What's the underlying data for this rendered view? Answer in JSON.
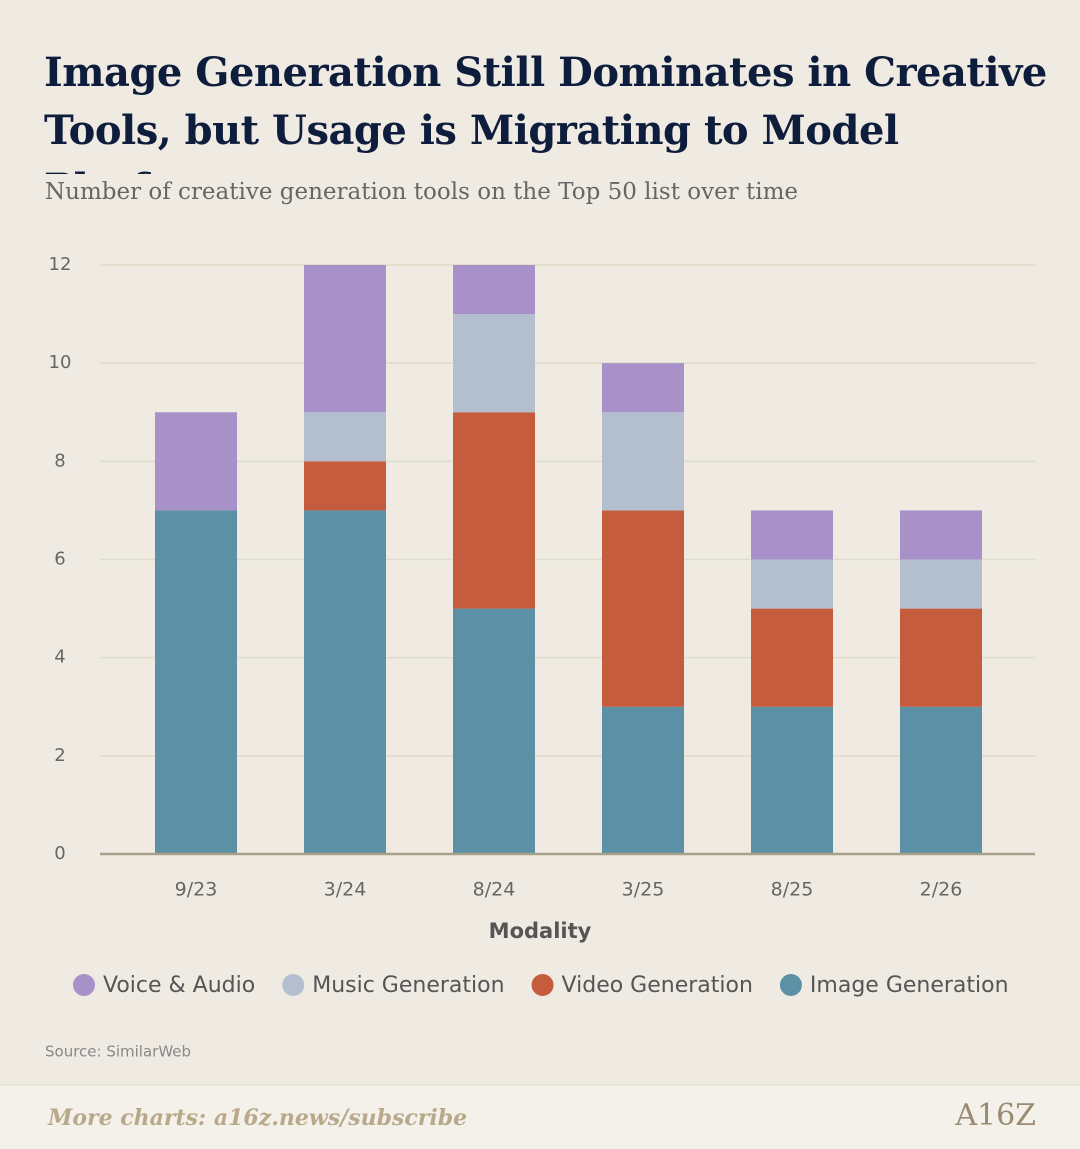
{
  "chart_data": {
    "type": "stacked_bar",
    "title": "Image Generation Still Dominates in Creative Tools, but Usage is Migrating to Model Platforms",
    "subtitle": "Number of creative generation tools on the Top 50 list over time",
    "x_label": "Modality",
    "categories": [
      "9/23",
      "3/24",
      "8/24",
      "3/25",
      "8/25",
      "2/26"
    ],
    "series": [
      {
        "name": "Voice & Audio",
        "color": "#a891c8",
        "values": [
          2,
          3,
          1,
          1,
          1,
          1
        ]
      },
      {
        "name": "Music Generation",
        "color": "#b3bfcf",
        "values": [
          0,
          1,
          2,
          2,
          1,
          1
        ]
      },
      {
        "name": "Video Generation",
        "color": "#c65c3e",
        "values": [
          0,
          1,
          4,
          4,
          2,
          2
        ]
      },
      {
        "name": "Image Generation",
        "color": "#5b90a5",
        "values": [
          7,
          7,
          5,
          3,
          3,
          3
        ]
      }
    ],
    "ylim": [
      0,
      12
    ],
    "yticks": [
      0,
      2,
      4,
      6,
      8,
      10,
      12
    ],
    "grid": true,
    "source": "Source: SimilarWeb",
    "footer_note": "More charts: a16z.news/subscribe",
    "logo": "A16Z"
  }
}
